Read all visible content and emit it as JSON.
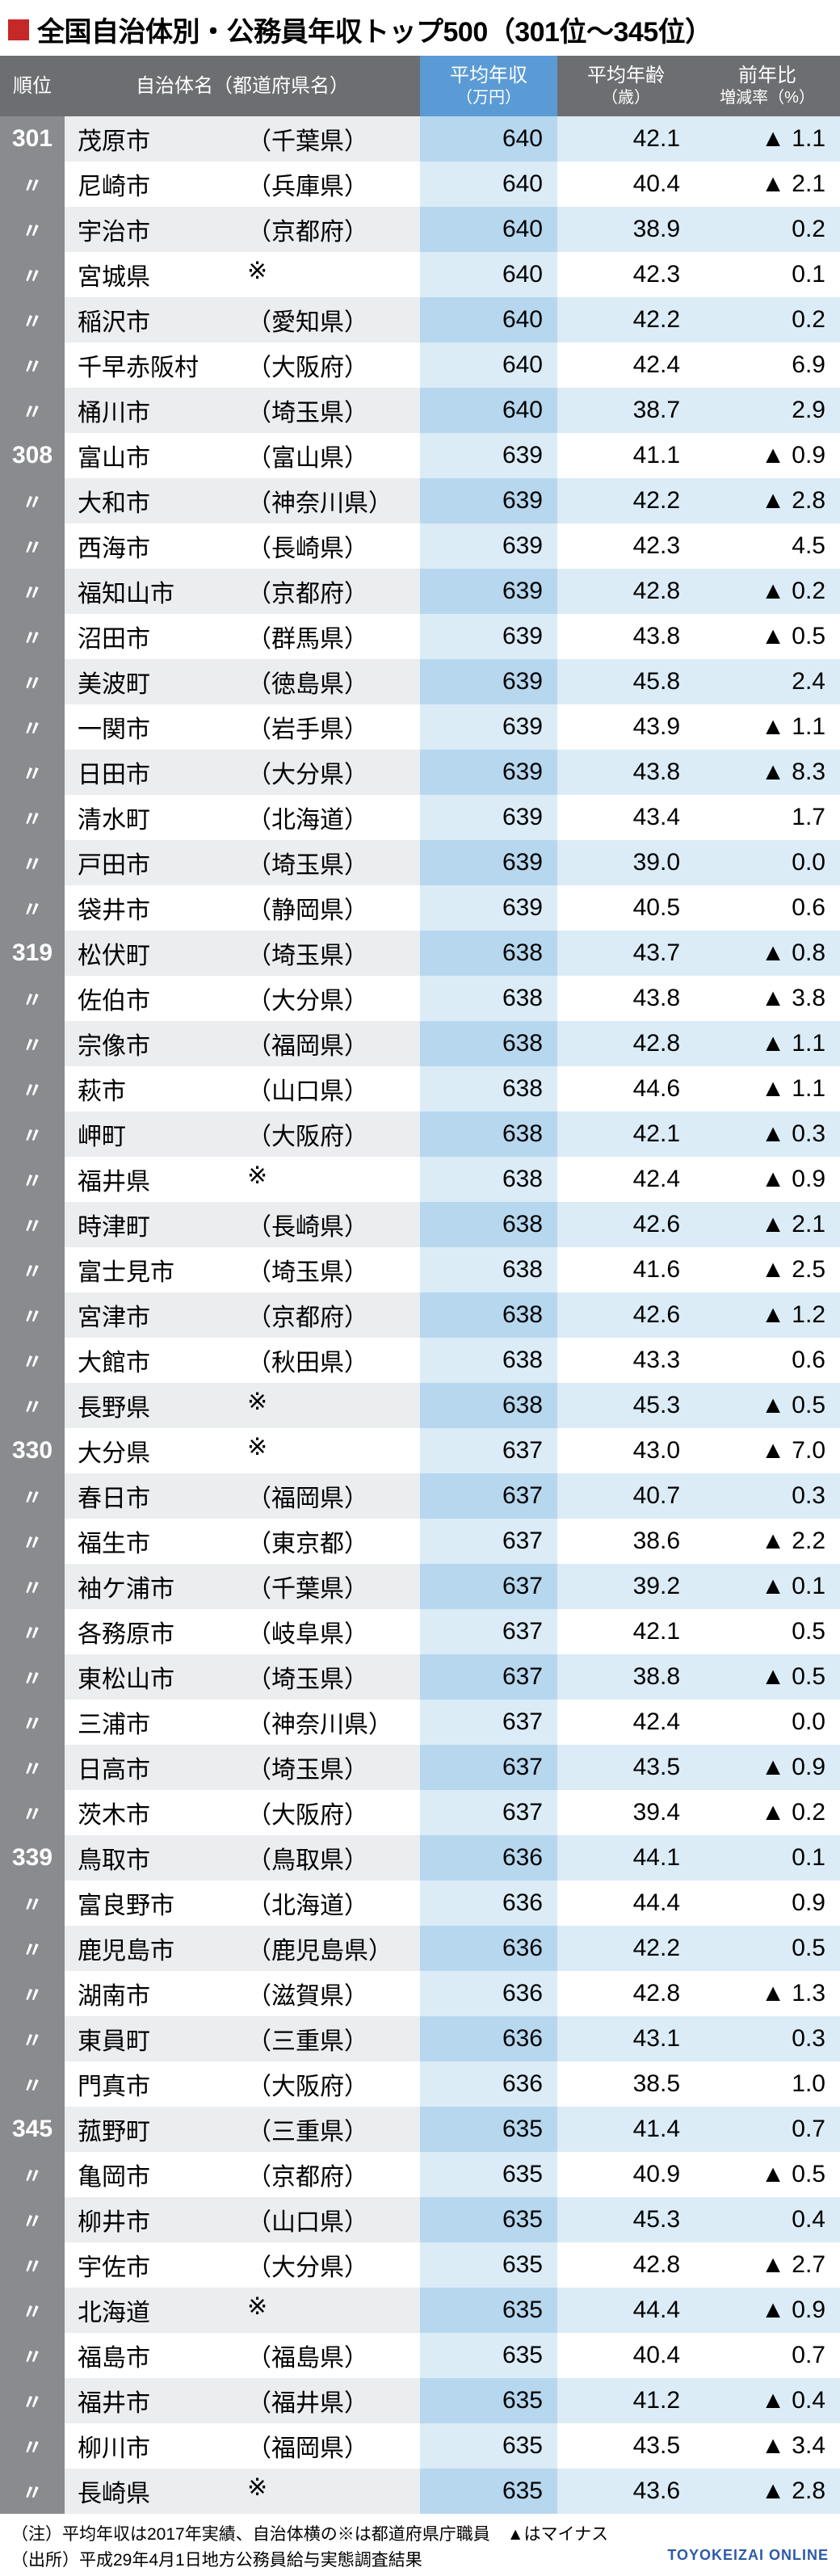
{
  "colors": {
    "title_square": "#c62828",
    "title_text": "#000000",
    "header_rank_bg": "#6d6e71",
    "header_name_bg": "#6d6e71",
    "header_salary_bg": "#5b9bd5",
    "header_age_bg": "#6d6e71",
    "header_yoy_bg": "#6d6e71",
    "rank_bg": "#8a8b8e",
    "row_even_name_bg": "#ecedef",
    "row_odd_name_bg": "#ffffff",
    "row_even_salary_bg": "#b7d7ee",
    "row_odd_salary_bg": "#dbecf7",
    "row_even_ageyoy_bg": "#dbecf7",
    "row_odd_ageyoy_bg": "#ffffff",
    "text": "#000000",
    "source_text": "#2e5aa8"
  },
  "title": "全国自治体別・公務員年収トップ500（301位～345位）",
  "columns": {
    "rank": "順位",
    "name": "自治体名（都道府県名）",
    "salary_line1": "平均年収",
    "salary_line2": "（万円）",
    "age_line1": "平均年齢",
    "age_line2": "（歳）",
    "yoy_line1": "前年比",
    "yoy_line2": "増減率（%）"
  },
  "ditto": "〃",
  "rows": [
    {
      "rank": "301",
      "muni": "茂原市",
      "pref": "（千葉県）",
      "salary": "640",
      "age": "42.1",
      "yoy": "▲ 1.1"
    },
    {
      "rank": "〃",
      "muni": "尼崎市",
      "pref": "（兵庫県）",
      "salary": "640",
      "age": "40.4",
      "yoy": "▲ 2.1"
    },
    {
      "rank": "〃",
      "muni": "宇治市",
      "pref": "（京都府）",
      "salary": "640",
      "age": "38.9",
      "yoy": "0.2"
    },
    {
      "rank": "〃",
      "muni": "宮城県",
      "pref": "※",
      "salary": "640",
      "age": "42.3",
      "yoy": "0.1"
    },
    {
      "rank": "〃",
      "muni": "稲沢市",
      "pref": "（愛知県）",
      "salary": "640",
      "age": "42.2",
      "yoy": "0.2"
    },
    {
      "rank": "〃",
      "muni": "千早赤阪村",
      "pref": "（大阪府）",
      "salary": "640",
      "age": "42.4",
      "yoy": "6.9"
    },
    {
      "rank": "〃",
      "muni": "桶川市",
      "pref": "（埼玉県）",
      "salary": "640",
      "age": "38.7",
      "yoy": "2.9"
    },
    {
      "rank": "308",
      "muni": "富山市",
      "pref": "（富山県）",
      "salary": "639",
      "age": "41.1",
      "yoy": "▲ 0.9"
    },
    {
      "rank": "〃",
      "muni": "大和市",
      "pref": "（神奈川県）",
      "salary": "639",
      "age": "42.2",
      "yoy": "▲ 2.8"
    },
    {
      "rank": "〃",
      "muni": "西海市",
      "pref": "（長崎県）",
      "salary": "639",
      "age": "42.3",
      "yoy": "4.5"
    },
    {
      "rank": "〃",
      "muni": "福知山市",
      "pref": "（京都府）",
      "salary": "639",
      "age": "42.8",
      "yoy": "▲ 0.2"
    },
    {
      "rank": "〃",
      "muni": "沼田市",
      "pref": "（群馬県）",
      "salary": "639",
      "age": "43.8",
      "yoy": "▲ 0.5"
    },
    {
      "rank": "〃",
      "muni": "美波町",
      "pref": "（徳島県）",
      "salary": "639",
      "age": "45.8",
      "yoy": "2.4"
    },
    {
      "rank": "〃",
      "muni": "一関市",
      "pref": "（岩手県）",
      "salary": "639",
      "age": "43.9",
      "yoy": "▲ 1.1"
    },
    {
      "rank": "〃",
      "muni": "日田市",
      "pref": "（大分県）",
      "salary": "639",
      "age": "43.8",
      "yoy": "▲ 8.3"
    },
    {
      "rank": "〃",
      "muni": "清水町",
      "pref": "（北海道）",
      "salary": "639",
      "age": "43.4",
      "yoy": "1.7"
    },
    {
      "rank": "〃",
      "muni": "戸田市",
      "pref": "（埼玉県）",
      "salary": "639",
      "age": "39.0",
      "yoy": "0.0"
    },
    {
      "rank": "〃",
      "muni": "袋井市",
      "pref": "（静岡県）",
      "salary": "639",
      "age": "40.5",
      "yoy": "0.6"
    },
    {
      "rank": "319",
      "muni": "松伏町",
      "pref": "（埼玉県）",
      "salary": "638",
      "age": "43.7",
      "yoy": "▲ 0.8"
    },
    {
      "rank": "〃",
      "muni": "佐伯市",
      "pref": "（大分県）",
      "salary": "638",
      "age": "43.8",
      "yoy": "▲ 3.8"
    },
    {
      "rank": "〃",
      "muni": "宗像市",
      "pref": "（福岡県）",
      "salary": "638",
      "age": "42.8",
      "yoy": "▲ 1.1"
    },
    {
      "rank": "〃",
      "muni": "萩市",
      "pref": "（山口県）",
      "salary": "638",
      "age": "44.6",
      "yoy": "▲ 1.1"
    },
    {
      "rank": "〃",
      "muni": "岬町",
      "pref": "（大阪府）",
      "salary": "638",
      "age": "42.1",
      "yoy": "▲ 0.3"
    },
    {
      "rank": "〃",
      "muni": "福井県",
      "pref": "※",
      "salary": "638",
      "age": "42.4",
      "yoy": "▲ 0.9"
    },
    {
      "rank": "〃",
      "muni": "時津町",
      "pref": "（長崎県）",
      "salary": "638",
      "age": "42.6",
      "yoy": "▲ 2.1"
    },
    {
      "rank": "〃",
      "muni": "富士見市",
      "pref": "（埼玉県）",
      "salary": "638",
      "age": "41.6",
      "yoy": "▲ 2.5"
    },
    {
      "rank": "〃",
      "muni": "宮津市",
      "pref": "（京都府）",
      "salary": "638",
      "age": "42.6",
      "yoy": "▲ 1.2"
    },
    {
      "rank": "〃",
      "muni": "大館市",
      "pref": "（秋田県）",
      "salary": "638",
      "age": "43.3",
      "yoy": "0.6"
    },
    {
      "rank": "〃",
      "muni": "長野県",
      "pref": "※",
      "salary": "638",
      "age": "45.3",
      "yoy": "▲ 0.5"
    },
    {
      "rank": "330",
      "muni": "大分県",
      "pref": "※",
      "salary": "637",
      "age": "43.0",
      "yoy": "▲ 7.0"
    },
    {
      "rank": "〃",
      "muni": "春日市",
      "pref": "（福岡県）",
      "salary": "637",
      "age": "40.7",
      "yoy": "0.3"
    },
    {
      "rank": "〃",
      "muni": "福生市",
      "pref": "（東京都）",
      "salary": "637",
      "age": "38.6",
      "yoy": "▲ 2.2"
    },
    {
      "rank": "〃",
      "muni": "袖ケ浦市",
      "pref": "（千葉県）",
      "salary": "637",
      "age": "39.2",
      "yoy": "▲ 0.1"
    },
    {
      "rank": "〃",
      "muni": "各務原市",
      "pref": "（岐阜県）",
      "salary": "637",
      "age": "42.1",
      "yoy": "0.5"
    },
    {
      "rank": "〃",
      "muni": "東松山市",
      "pref": "（埼玉県）",
      "salary": "637",
      "age": "38.8",
      "yoy": "▲ 0.5"
    },
    {
      "rank": "〃",
      "muni": "三浦市",
      "pref": "（神奈川県）",
      "salary": "637",
      "age": "42.4",
      "yoy": "0.0"
    },
    {
      "rank": "〃",
      "muni": "日高市",
      "pref": "（埼玉県）",
      "salary": "637",
      "age": "43.5",
      "yoy": "▲ 0.9"
    },
    {
      "rank": "〃",
      "muni": "茨木市",
      "pref": "（大阪府）",
      "salary": "637",
      "age": "39.4",
      "yoy": "▲ 0.2"
    },
    {
      "rank": "339",
      "muni": "鳥取市",
      "pref": "（鳥取県）",
      "salary": "636",
      "age": "44.1",
      "yoy": "0.1"
    },
    {
      "rank": "〃",
      "muni": "富良野市",
      "pref": "（北海道）",
      "salary": "636",
      "age": "44.4",
      "yoy": "0.9"
    },
    {
      "rank": "〃",
      "muni": "鹿児島市",
      "pref": "（鹿児島県）",
      "salary": "636",
      "age": "42.2",
      "yoy": "0.5"
    },
    {
      "rank": "〃",
      "muni": "湖南市",
      "pref": "（滋賀県）",
      "salary": "636",
      "age": "42.8",
      "yoy": "▲ 1.3"
    },
    {
      "rank": "〃",
      "muni": "東員町",
      "pref": "（三重県）",
      "salary": "636",
      "age": "43.1",
      "yoy": "0.3"
    },
    {
      "rank": "〃",
      "muni": "門真市",
      "pref": "（大阪府）",
      "salary": "636",
      "age": "38.5",
      "yoy": "1.0"
    },
    {
      "rank": "345",
      "muni": "菰野町",
      "pref": "（三重県）",
      "salary": "635",
      "age": "41.4",
      "yoy": "0.7"
    },
    {
      "rank": "〃",
      "muni": "亀岡市",
      "pref": "（京都府）",
      "salary": "635",
      "age": "40.9",
      "yoy": "▲ 0.5"
    },
    {
      "rank": "〃",
      "muni": "柳井市",
      "pref": "（山口県）",
      "salary": "635",
      "age": "45.3",
      "yoy": "0.4"
    },
    {
      "rank": "〃",
      "muni": "宇佐市",
      "pref": "（大分県）",
      "salary": "635",
      "age": "42.8",
      "yoy": "▲ 2.7"
    },
    {
      "rank": "〃",
      "muni": "北海道",
      "pref": "※",
      "salary": "635",
      "age": "44.4",
      "yoy": "▲ 0.9"
    },
    {
      "rank": "〃",
      "muni": "福島市",
      "pref": "（福島県）",
      "salary": "635",
      "age": "40.4",
      "yoy": "0.7"
    },
    {
      "rank": "〃",
      "muni": "福井市",
      "pref": "（福井県）",
      "salary": "635",
      "age": "41.2",
      "yoy": "▲ 0.4"
    },
    {
      "rank": "〃",
      "muni": "柳川市",
      "pref": "（福岡県）",
      "salary": "635",
      "age": "43.5",
      "yoy": "▲ 3.4"
    },
    {
      "rank": "〃",
      "muni": "長崎県",
      "pref": "※",
      "salary": "635",
      "age": "43.6",
      "yoy": "▲ 2.8"
    }
  ],
  "notes": {
    "line1": "（注）平均年収は2017年実績、自治体横の※は都道府県庁職員　▲はマイナス",
    "line2": "（出所）平成29年4月1日地方公務員給与実態調査結果",
    "source": "TOYOKEIZAI  ONLINE"
  }
}
